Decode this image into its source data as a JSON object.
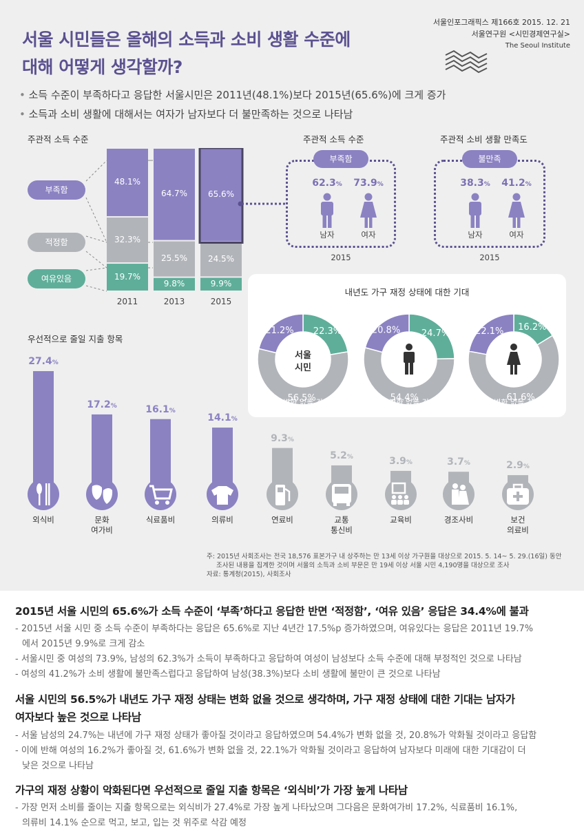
{
  "header": {
    "title_line1": "서울 시민들은 올해의 소득과 소비 생활 수준에",
    "title_line2": "대해 어떻게 생각할까?",
    "pub_line1": "서울인포그래픽스 제166호 2015. 12. 21",
    "pub_line2": "서울연구원 <시민경제연구실>",
    "pub_line3": "The Seoul Institute"
  },
  "bullets": [
    "소득 수준이 부족하다고 응답한 서울시민은 2011년(48.1%)보다 2015년(65.6%)에 크게 증가",
    "소득과 소비 생활에 대해서는 여자가 남자보다 더 불만족하는 것으로 나타남"
  ],
  "colors": {
    "purple": "#8b82c2",
    "gray": "#b1b4b9",
    "teal": "#5fae9a",
    "dark": "#5b5190"
  },
  "chart_data": [
    {
      "type": "bar",
      "title": "주관적 소득 수준",
      "stacked": true,
      "categories": [
        "2011",
        "2013",
        "2015"
      ],
      "series": [
        {
          "name": "부족함",
          "values": [
            48.1,
            64.7,
            65.6
          ],
          "labels": [
            "48.1%",
            "64.7%",
            "65.6%"
          ]
        },
        {
          "name": "적정함",
          "values": [
            32.3,
            25.5,
            24.5
          ],
          "labels": [
            "32.3%",
            "25.5%",
            "24.5%"
          ]
        },
        {
          "name": "여유있음",
          "values": [
            19.7,
            9.8,
            9.9
          ],
          "labels": [
            "19.7%",
            "9.8%",
            "9.9%"
          ]
        }
      ]
    },
    {
      "type": "bar",
      "title": "주관적 소득 수준",
      "subtitle": "부족함",
      "year": "2015",
      "categories": [
        "남자",
        "여자"
      ],
      "values": [
        62.3,
        73.9
      ],
      "labels": [
        "62.3%",
        "73.9%"
      ]
    },
    {
      "type": "bar",
      "title": "주관적 소비 생활 만족도",
      "subtitle": "불만족",
      "year": "2015",
      "categories": [
        "남자",
        "여자"
      ],
      "values": [
        38.3,
        41.2
      ],
      "labels": [
        "38.3%",
        "41.2%"
      ]
    },
    {
      "type": "pie",
      "title": "내년도 가구 재정 상태에 대한 기대",
      "categories": [
        "악화될 것",
        "좋아질 것",
        "변화 없을 것"
      ],
      "groups": [
        {
          "name": "서울 시민",
          "values": [
            21.2,
            22.3,
            56.5
          ],
          "labels": [
            "21.2%",
            "22.3%",
            "56.5%"
          ]
        },
        {
          "name": "남자",
          "values": [
            20.8,
            24.7,
            54.4
          ],
          "labels": [
            "20.8%",
            "24.7%",
            "54.4%"
          ]
        },
        {
          "name": "여자",
          "values": [
            22.1,
            16.2,
            61.6
          ],
          "labels": [
            "22.1%",
            "16.2%",
            "61.6%"
          ]
        }
      ]
    },
    {
      "type": "bar",
      "title": "우선적으로 줄일 지출 항목",
      "categories": [
        "외식비",
        "문화\n여가비",
        "식료품비",
        "의류비",
        "연료비",
        "교통\n통신비",
        "교육비",
        "경조사비",
        "보건\n의료비"
      ],
      "values": [
        27.4,
        17.2,
        16.1,
        14.1,
        9.3,
        5.2,
        3.9,
        3.7,
        2.9
      ],
      "labels": [
        "27.4%",
        "17.2%",
        "16.1%",
        "14.1%",
        "9.3%",
        "5.2%",
        "3.9%",
        "3.7%",
        "2.9%"
      ],
      "ylim": [
        0,
        30
      ]
    }
  ],
  "income_labels": {
    "lack": "부족함",
    "adequate": "적정함",
    "surplus": "여유있음"
  },
  "gender": {
    "male": "남자",
    "female": "여자"
  },
  "center_label": "서울\n시민",
  "note": {
    "line1": "주: 2015년 사회조사는 전국 18,576 표본가구 내 상주하는 만 13세 이상 가구원을 대상으로 2015. 5. 14~ 5. 29.(16일) 동안",
    "line2": "조사된 내용을 집계한 것이며 서울의 소득과 소비 부문은 만 19세 이상 서울 시민 4,190명을 대상으로 조사",
    "line3": "자료: 통계청(2015), 사회조사"
  },
  "findings": [
    {
      "heading": "2015년 서울 시민의 65.6%가 소득 수준이 ‘부족’하다고 응답한 반면 ‘적정함’, ‘여유 있음’ 응답은 34.4%에 불과",
      "items": [
        "- 2015년 서울 시민 중 소득 수준이 부족하다는 응답은 65.6%로 지난 4년간 17.5%p 증가하였으며, 여유있다는 응답은 2011년 19.7%",
        "  에서 2015년 9.9%로 크게 감소",
        "- 서울시민 중 여성의 73.9%, 남성의 62.3%가 소득이 부족하다고 응답하여 여성이 남성보다 소득 수준에 대해 부정적인 것으로 나타남",
        "- 여성의 41.2%가 소비 생활에 불만족스럽다고 응답하여 남성(38.3%)보다 소비 생활에 불만이 큰 것으로 나타남"
      ]
    },
    {
      "heading": "서울 시민의 56.5%가 내년도 가구 재정 상태는 변화 없을 것으로 생각하며, 가구 재정 상태에 대한 기대는 남자가",
      "heading2": "여자보다 높은 것으로 나타남",
      "items": [
        "- 서울 남성의 24.7%는 내년에 가구 재정 상태가 좋아질 것이라고 응답하였으며 54.4%가 변화 없을 것, 20.8%가 악화될 것이라고 응답함",
        "- 이에 반해 여성의 16.2%가 좋아질 것, 61.6%가 변화 없을 것, 22.1%가 악화될 것이라고 응답하여 남자보다 미래에 대한 기대감이 더",
        "  낮은 것으로 나타남"
      ]
    },
    {
      "heading": "가구의 재정 상황이 악화된다면 우선적으로 줄일 지출 항목은 ‘외식비’가 가장 높게 나타남",
      "items": [
        "- 가장 먼저 소비를 줄이는 지출 항목으로는 외식비가 27.4%로 가장 높게 나타났으며 그다음은 문화여가비 17.2%, 식료품비 16.1%,",
        "  의류비 14.1% 순으로 먹고, 보고, 입는 것 위주로 삭감 예정"
      ]
    }
  ]
}
